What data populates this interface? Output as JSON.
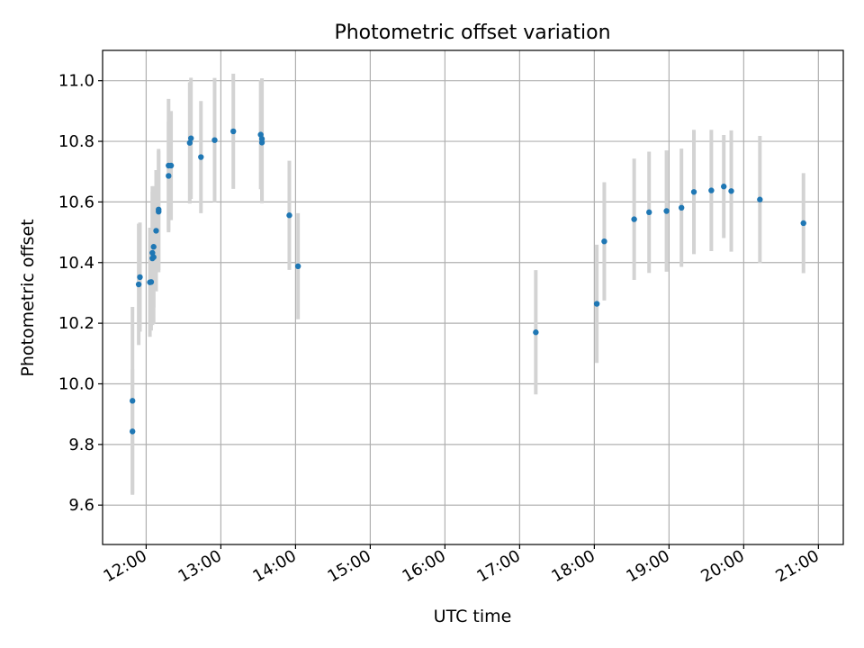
{
  "chart_data": {
    "type": "scatter",
    "title": "Photometric offset variation",
    "xlabel": "UTC time",
    "ylabel": "Photometric offset",
    "xlim": [
      "11:25",
      "21:20"
    ],
    "ylim": [
      9.47,
      11.1
    ],
    "grid": true,
    "x_ticks": [
      "12:00",
      "13:00",
      "14:00",
      "15:00",
      "16:00",
      "17:00",
      "18:00",
      "19:00",
      "20:00",
      "21:00"
    ],
    "y_ticks": [
      "9.6",
      "9.8",
      "10.0",
      "10.2",
      "10.4",
      "10.6",
      "10.8",
      "11.0"
    ],
    "colors": {
      "points": "#1f77b4",
      "errorbars": "#d3d3d3",
      "grid": "#b0b0b0"
    },
    "series": [
      {
        "points": [
          {
            "x": "11:49",
            "y": 9.843,
            "err": 0.205
          },
          {
            "x": "11:49",
            "y": 9.944,
            "err": 0.31
          },
          {
            "x": "11:54",
            "y": 10.328,
            "err": 0.2
          },
          {
            "x": "11:55",
            "y": 10.352,
            "err": 0.18
          },
          {
            "x": "12:03",
            "y": 10.335,
            "err": 0.18
          },
          {
            "x": "12:04",
            "y": 10.336,
            "err": 0.16
          },
          {
            "x": "12:05",
            "y": 10.414,
            "err": 0.22
          },
          {
            "x": "12:05",
            "y": 10.432,
            "err": 0.22
          },
          {
            "x": "12:06",
            "y": 10.418,
            "err": 0.22
          },
          {
            "x": "12:06",
            "y": 10.452,
            "err": 0.2
          },
          {
            "x": "12:08",
            "y": 10.505,
            "err": 0.2
          },
          {
            "x": "12:10",
            "y": 10.568,
            "err": 0.2
          },
          {
            "x": "12:10",
            "y": 10.575,
            "err": 0.2
          },
          {
            "x": "12:18",
            "y": 10.72,
            "err": 0.22
          },
          {
            "x": "12:18",
            "y": 10.686,
            "err": 0.18
          },
          {
            "x": "12:20",
            "y": 10.72,
            "err": 0.18
          },
          {
            "x": "12:35",
            "y": 10.795,
            "err": 0.2
          },
          {
            "x": "12:36",
            "y": 10.81,
            "err": 0.2
          },
          {
            "x": "12:44",
            "y": 10.748,
            "err": 0.185
          },
          {
            "x": "12:55",
            "y": 10.804,
            "err": 0.205
          },
          {
            "x": "13:10",
            "y": 10.833,
            "err": 0.19
          },
          {
            "x": "13:32",
            "y": 10.822,
            "err": 0.18
          },
          {
            "x": "13:33",
            "y": 10.808,
            "err": 0.2
          },
          {
            "x": "13:33",
            "y": 10.796,
            "err": 0.2
          },
          {
            "x": "13:55",
            "y": 10.556,
            "err": 0.18
          },
          {
            "x": "14:02",
            "y": 10.388,
            "err": 0.175
          },
          {
            "x": "17:13",
            "y": 10.17,
            "err": 0.205
          },
          {
            "x": "18:02",
            "y": 10.264,
            "err": 0.195
          },
          {
            "x": "18:08",
            "y": 10.47,
            "err": 0.195
          },
          {
            "x": "18:32",
            "y": 10.543,
            "err": 0.2
          },
          {
            "x": "18:44",
            "y": 10.566,
            "err": 0.2
          },
          {
            "x": "18:58",
            "y": 10.57,
            "err": 0.2
          },
          {
            "x": "19:10",
            "y": 10.581,
            "err": 0.195
          },
          {
            "x": "19:20",
            "y": 10.633,
            "err": 0.205
          },
          {
            "x": "19:34",
            "y": 10.638,
            "err": 0.2
          },
          {
            "x": "19:44",
            "y": 10.651,
            "err": 0.17
          },
          {
            "x": "19:50",
            "y": 10.636,
            "err": 0.2
          },
          {
            "x": "20:13",
            "y": 10.608,
            "err": 0.21
          },
          {
            "x": "20:48",
            "y": 10.53,
            "err": 0.165
          }
        ]
      }
    ]
  }
}
